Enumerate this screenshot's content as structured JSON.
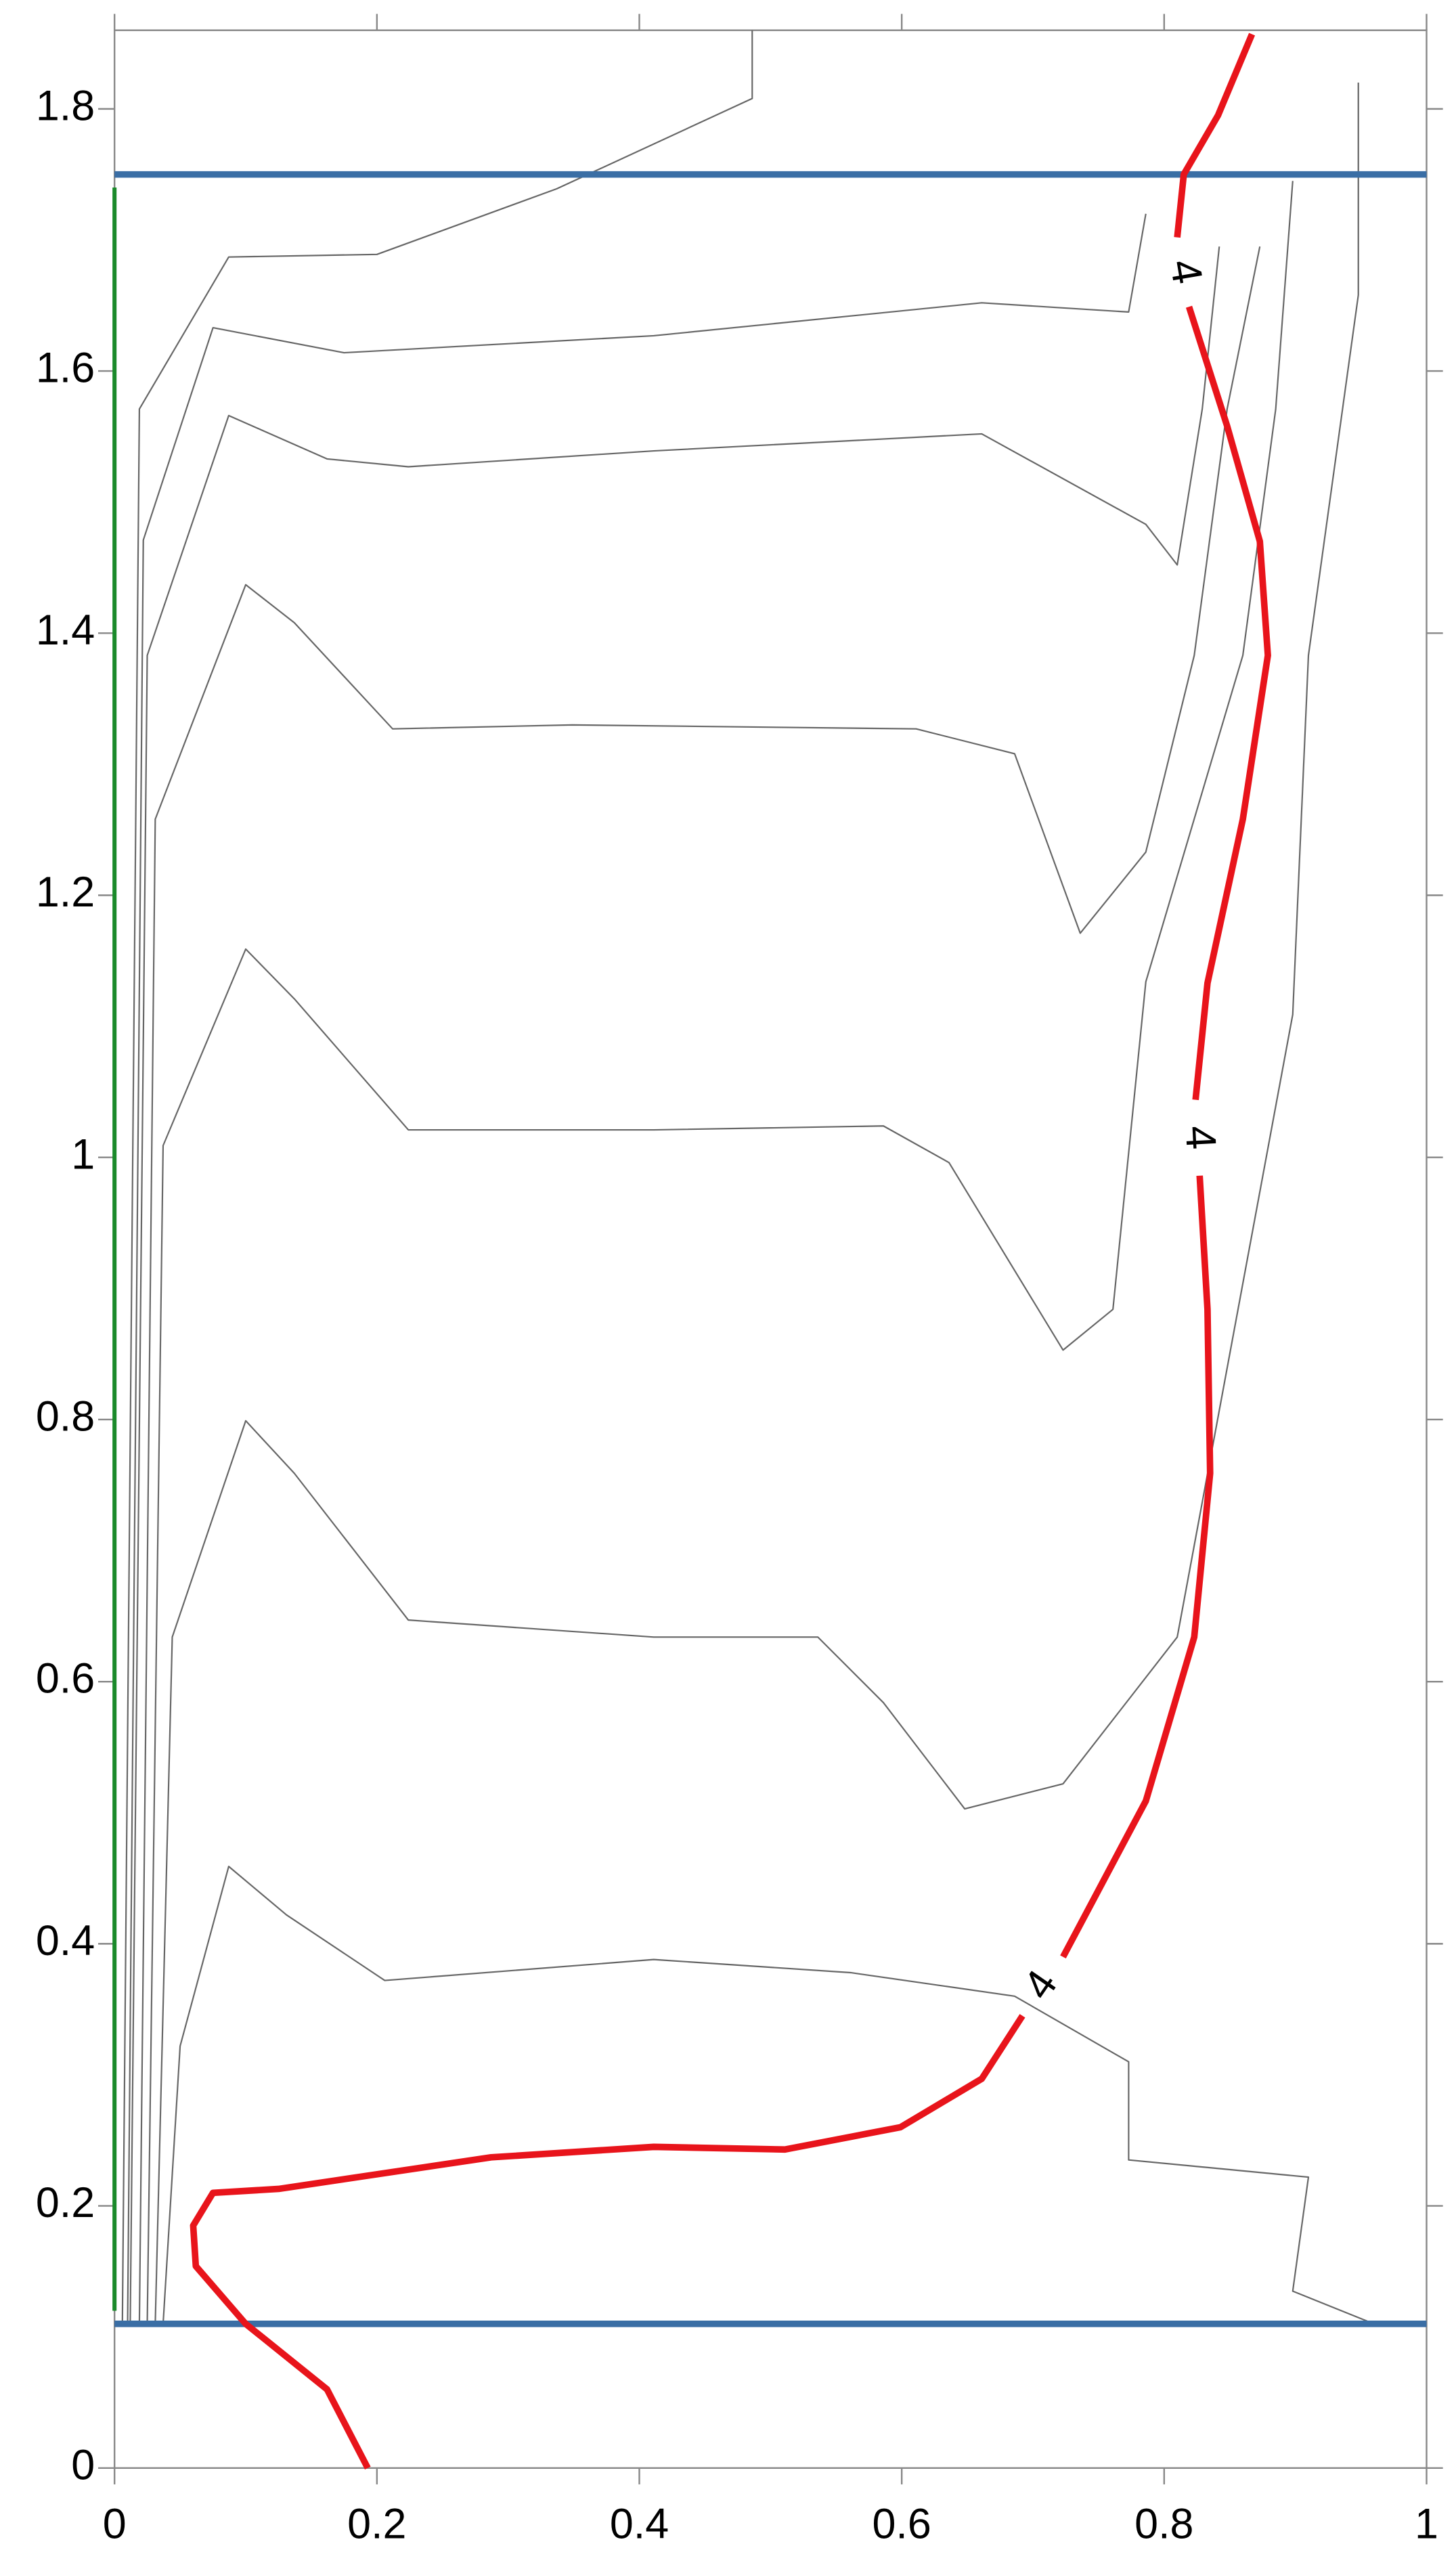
{
  "chart_data": {
    "type": "contour",
    "xlim": [
      0,
      1
    ],
    "ylim": [
      0,
      1.86
    ],
    "xticks": [
      0,
      0.2,
      0.4,
      0.6,
      0.8,
      1
    ],
    "yticks": [
      0,
      0.2,
      0.4,
      0.6,
      0.8,
      1,
      1.2,
      1.4,
      1.6,
      1.8
    ],
    "highlight_contour": {
      "level": 4,
      "color": "#e8141b",
      "x": [
        0.193,
        0.162,
        0.1,
        0.062,
        0.06,
        0.075,
        0.125,
        0.287,
        0.411,
        0.511,
        0.599,
        0.661,
        0.692,
        null,
        0.723,
        0.786,
        0.823,
        0.835,
        0.833,
        0.827,
        null,
        0.824,
        0.833,
        0.86,
        0.879,
        0.873,
        0.848,
        0.819,
        null,
        0.81,
        0.815,
        0.841,
        0.867
      ],
      "y": [
        0,
        0.06,
        0.11,
        0.154,
        0.185,
        0.21,
        0.213,
        0.237,
        0.245,
        0.243,
        0.26,
        0.297,
        0.345,
        null,
        0.39,
        0.509,
        0.634,
        0.759,
        0.884,
        0.986,
        null,
        1.044,
        1.133,
        1.258,
        1.383,
        1.47,
        1.558,
        1.649,
        null,
        1.702,
        1.75,
        1.795,
        1.857
      ]
    },
    "contours": [
      {
        "x": [
          0.037,
          0.05,
          0.087,
          0.131,
          0.206,
          0.411,
          0.561,
          0.686,
          0.773,
          0.773,
          0.91,
          0.898,
          0.96
        ],
        "y": [
          0.11,
          0.322,
          0.459,
          0.422,
          0.372,
          0.388,
          0.378,
          0.36,
          0.31,
          0.235,
          0.222,
          0.135,
          0.11
        ]
      },
      {
        "x": [
          0.031,
          0.044,
          0.1,
          0.137,
          0.224,
          0.411,
          0.536,
          0.586,
          0.648,
          0.723,
          0.81,
          0.898,
          0.91,
          0.948,
          0.948
        ],
        "y": [
          0.11,
          0.634,
          0.799,
          0.759,
          0.647,
          0.634,
          0.634,
          0.584,
          0.503,
          0.522,
          0.634,
          1.109,
          1.383,
          1.658,
          1.82
        ]
      },
      {
        "x": [
          0.025,
          0.037,
          0.1,
          0.137,
          0.224,
          0.411,
          0.586,
          0.636,
          0.723,
          0.761,
          0.786,
          0.86,
          0.885,
          0.898
        ],
        "y": [
          0.11,
          1.009,
          1.159,
          1.121,
          1.021,
          1.021,
          1.024,
          0.996,
          0.853,
          0.884,
          1.134,
          1.383,
          1.571,
          1.745
        ]
      },
      {
        "x": [
          0.019,
          0.031,
          0.1,
          0.137,
          0.212,
          0.349,
          0.611,
          0.686,
          0.736,
          0.786,
          0.823,
          0.848,
          0.873
        ],
        "y": [
          0.11,
          1.258,
          1.437,
          1.408,
          1.327,
          1.33,
          1.327,
          1.308,
          1.171,
          1.233,
          1.383,
          1.571,
          1.695
        ]
      },
      {
        "x": [
          0.012,
          0.025,
          0.087,
          0.162,
          0.224,
          0.411,
          0.661,
          0.786,
          0.81,
          0.829,
          0.842
        ],
        "y": [
          0.11,
          1.383,
          1.566,
          1.533,
          1.527,
          1.539,
          1.552,
          1.483,
          1.452,
          1.571,
          1.695
        ]
      },
      {
        "x": [
          0.01,
          0.022,
          0.075,
          0.175,
          0.411,
          0.661,
          0.773,
          0.786
        ],
        "y": [
          0.11,
          1.471,
          1.633,
          1.614,
          1.627,
          1.652,
          1.645,
          1.72
        ]
      },
      {
        "x": [
          0.006,
          0.019,
          0.087,
          0.2,
          0.337,
          0.486,
          0.486
        ],
        "y": [
          0.11,
          1.571,
          1.687,
          1.689,
          1.739,
          1.808,
          1.86
        ]
      }
    ],
    "contour_color": "#666666",
    "hlines": [
      {
        "y": 1.75,
        "color": "#3a6ea5"
      },
      {
        "y": 0.11,
        "color": "#3a6ea5"
      }
    ],
    "vlines": [
      {
        "x": 0,
        "y": [
          0.12,
          1.74
        ],
        "color": "#1a8a2a"
      }
    ]
  }
}
